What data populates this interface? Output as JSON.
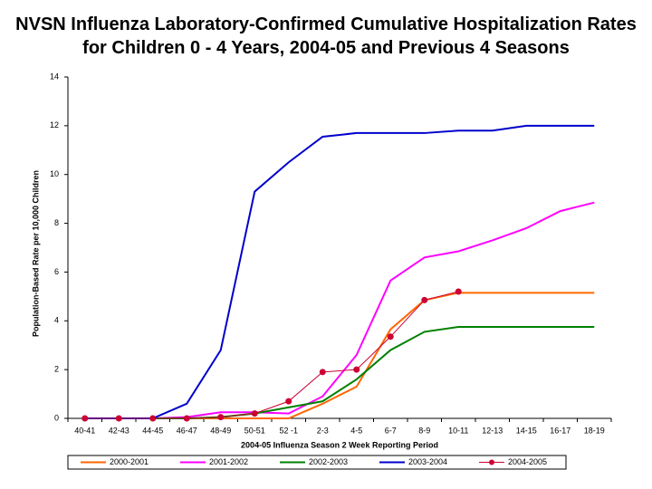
{
  "chart_data": {
    "type": "line",
    "title": "NVSN Influenza Laboratory-Confirmed Cumulative Hospitalization Rates for Children 0 - 4 Years, 2004-05 and Previous 4 Seasons",
    "x_label": "2004-05 Influenza Season 2 Week Reporting Period",
    "y_label": "Population-Based Rate per 10,000 Children",
    "categories": [
      "40-41",
      "42-43",
      "44-45",
      "46-47",
      "48-49",
      "50-51",
      "52 -1",
      "2-3",
      "4-5",
      "6-7",
      "8-9",
      "10-11",
      "12-13",
      "14-15",
      "16-17",
      "18-19"
    ],
    "ylim": [
      0,
      14
    ],
    "yticks": [
      0,
      2,
      4,
      6,
      8,
      10,
      12,
      14
    ],
    "grid": false,
    "legend": "bottom",
    "series": [
      {
        "name": "2000-2001",
        "color": "#ff6600",
        "values": [
          0,
          0,
          0,
          0,
          0,
          0,
          0,
          0.6,
          1.3,
          3.65,
          4.85,
          5.15,
          5.15,
          5.15,
          5.15,
          5.15
        ]
      },
      {
        "name": "2001-2002",
        "color": "#ff00ff",
        "values": [
          0,
          0,
          0,
          0.05,
          0.25,
          0.25,
          0.2,
          0.9,
          2.6,
          5.65,
          6.6,
          6.85,
          7.3,
          7.8,
          8.5,
          8.85
        ]
      },
      {
        "name": "2002-2003",
        "color": "#008000",
        "values": [
          0,
          0,
          0,
          0,
          0.05,
          0.2,
          0.45,
          0.7,
          1.6,
          2.8,
          3.55,
          3.75,
          3.75,
          3.75,
          3.75,
          3.75
        ]
      },
      {
        "name": "2003-2004",
        "color": "#0000cc",
        "values": [
          0,
          0,
          0,
          0.6,
          2.8,
          9.3,
          10.5,
          11.55,
          11.7,
          11.7,
          11.7,
          11.8,
          11.8,
          12.0,
          12.0,
          12.0
        ]
      },
      {
        "name": "2004-2005",
        "color": "#cc0033",
        "marker": "circle",
        "values": [
          0,
          0,
          0,
          0,
          0.05,
          0.2,
          0.7,
          1.9,
          2.0,
          3.35,
          4.85,
          5.2,
          null,
          null,
          null,
          null
        ]
      }
    ]
  }
}
